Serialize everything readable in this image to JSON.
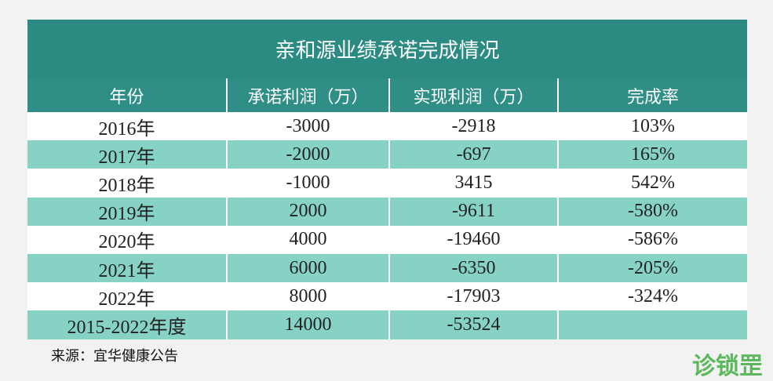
{
  "table": {
    "title": "亲和源业绩承诺完成情况",
    "header": [
      "年份",
      "承诺利润（万）",
      "实现利润（万）",
      "完成率"
    ],
    "rows": [
      [
        "2016年",
        "-3000",
        "-2918",
        "103%"
      ],
      [
        "2017年",
        "-2000",
        "-697",
        "165%"
      ],
      [
        "2018年",
        "-1000",
        "3415",
        "542%"
      ],
      [
        "2019年",
        "2000",
        "-9611",
        "-580%"
      ],
      [
        "2020年",
        "4000",
        "-19460",
        "-586%"
      ],
      [
        "2021年",
        "6000",
        "-6350",
        "-205%"
      ],
      [
        "2022年",
        "8000",
        "-17903",
        "-324%"
      ],
      [
        "2015-2022年度",
        "14000",
        "-53524"
      ]
    ],
    "source": "来源：宜华健康公告"
  },
  "logo": "诊锁罡"
}
